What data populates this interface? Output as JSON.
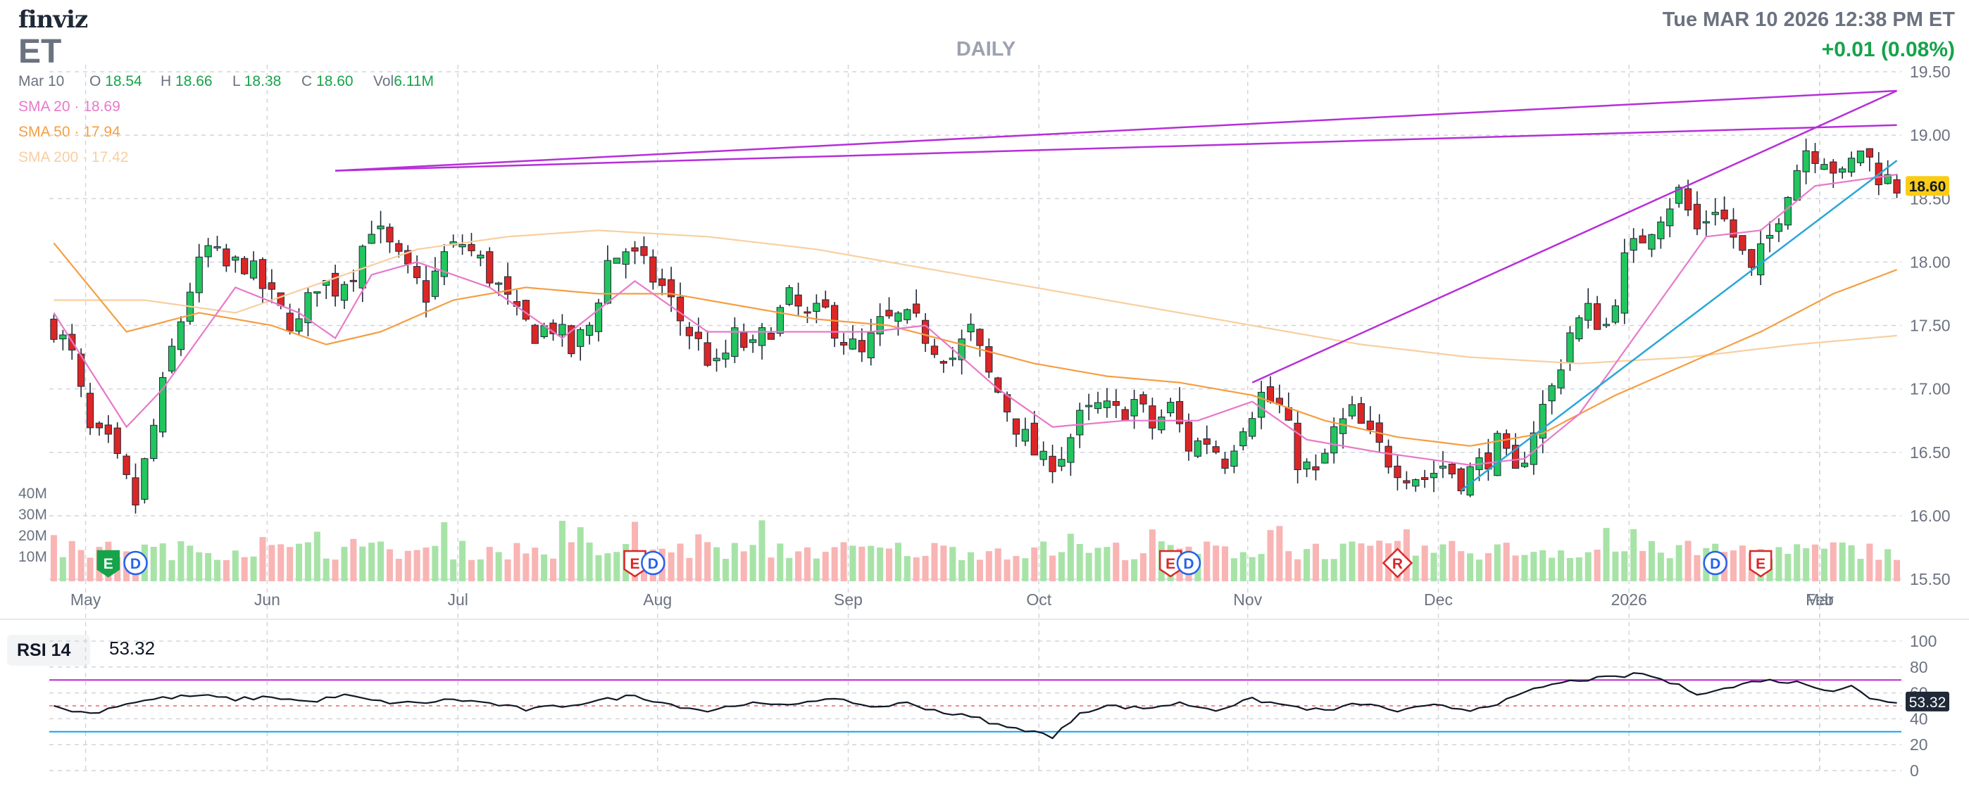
{
  "header": {
    "logo": "finviz",
    "ticker": "ET",
    "period": "DAILY",
    "datetime": "Tue MAR 10 2026 12:38 PM ET",
    "change": "+0.01 (0.08%)"
  },
  "ohlc": {
    "date": "Mar 10",
    "open_label": "O",
    "open": "18.54",
    "high_label": "H",
    "high": "18.66",
    "low_label": "L",
    "low": "18.38",
    "close_label": "C",
    "close": "18.60",
    "vol_label": "Vol",
    "vol": "6.11M"
  },
  "sma": [
    {
      "label": "SMA 20",
      "value": "18.69",
      "color": "#e879c9"
    },
    {
      "label": "SMA 50",
      "value": "17.94",
      "color": "#f59e42"
    },
    {
      "label": "SMA 200",
      "value": "17.42",
      "color": "#f8cfa0"
    }
  ],
  "rsi": {
    "label": "RSI 14",
    "value": "53.32"
  },
  "colors": {
    "up": "#22c55e",
    "down": "#dc2626",
    "up_vol": "#a7e3a7",
    "down_vol": "#f9b4b4",
    "trend": "#b62fd8",
    "channel": "#2aa6d6",
    "grid": "#d1d5db"
  },
  "chart_data": [
    {
      "type": "candlestick",
      "title": "ET DAILY",
      "x_ticks": [
        "May",
        "Jun",
        "Jul",
        "Aug",
        "Sep",
        "Oct",
        "Nov",
        "Dec",
        "2026",
        "Feb",
        "Mar"
      ],
      "y_ticks": [
        "19.50",
        "19.00",
        "18.50",
        "18.00",
        "17.50",
        "17.00",
        "16.50",
        "16.00",
        "15.50"
      ],
      "ylim": [
        15.5,
        19.5
      ],
      "last_price": "18.60",
      "close_path": [
        [
          0,
          17.5
        ],
        [
          2,
          17.25
        ],
        [
          4,
          16.65
        ],
        [
          6,
          16.55
        ],
        [
          9,
          16.1
        ],
        [
          11,
          16.7
        ],
        [
          13,
          17.3
        ],
        [
          15,
          17.8
        ],
        [
          17,
          18.1
        ],
        [
          19,
          17.95
        ],
        [
          21,
          18.0
        ],
        [
          23,
          17.8
        ],
        [
          25,
          17.6
        ],
        [
          27,
          17.5
        ],
        [
          29,
          17.85
        ],
        [
          31,
          17.8
        ],
        [
          33,
          17.95
        ],
        [
          35,
          18.3
        ],
        [
          37,
          18.1
        ],
        [
          39,
          17.9
        ],
        [
          41,
          17.75
        ],
        [
          43,
          18.05
        ],
        [
          45,
          18.15
        ],
        [
          47,
          18.0
        ],
        [
          49,
          17.8
        ],
        [
          51,
          17.55
        ],
        [
          53,
          17.45
        ],
        [
          55,
          17.5
        ],
        [
          57,
          17.3
        ],
        [
          59,
          17.5
        ],
        [
          61,
          18.0
        ],
        [
          63,
          18.1
        ],
        [
          65,
          17.95
        ],
        [
          67,
          17.8
        ],
        [
          69,
          17.55
        ],
        [
          71,
          17.35
        ],
        [
          73,
          17.15
        ],
        [
          75,
          17.4
        ],
        [
          77,
          17.3
        ],
        [
          79,
          17.5
        ],
        [
          81,
          17.7
        ],
        [
          83,
          17.55
        ],
        [
          85,
          17.6
        ],
        [
          87,
          17.4
        ],
        [
          89,
          17.25
        ],
        [
          91,
          17.5
        ],
        [
          93,
          17.55
        ],
        [
          95,
          17.5
        ],
        [
          97,
          17.35
        ],
        [
          99,
          17.25
        ],
        [
          101,
          17.45
        ],
        [
          103,
          17.1
        ],
        [
          105,
          16.85
        ],
        [
          107,
          16.6
        ],
        [
          109,
          16.4
        ],
        [
          111,
          16.5
        ],
        [
          113,
          16.75
        ],
        [
          115,
          16.85
        ],
        [
          117,
          16.8
        ],
        [
          119,
          16.9
        ],
        [
          121,
          16.7
        ],
        [
          123,
          16.85
        ],
        [
          125,
          16.55
        ],
        [
          127,
          16.6
        ],
        [
          129,
          16.45
        ],
        [
          131,
          16.75
        ],
        [
          133,
          16.95
        ],
        [
          135,
          16.85
        ],
        [
          137,
          16.45
        ],
        [
          139,
          16.3
        ],
        [
          141,
          16.65
        ],
        [
          143,
          16.8
        ],
        [
          145,
          16.6
        ],
        [
          147,
          16.45
        ],
        [
          149,
          16.35
        ],
        [
          151,
          16.3
        ],
        [
          153,
          16.4
        ],
        [
          155,
          16.3
        ],
        [
          157,
          16.4
        ],
        [
          159,
          16.55
        ],
        [
          161,
          16.3
        ],
        [
          163,
          16.7
        ],
        [
          165,
          17.0
        ],
        [
          167,
          17.45
        ],
        [
          169,
          17.6
        ],
        [
          171,
          17.5
        ],
        [
          173,
          18.0
        ],
        [
          175,
          18.2
        ],
        [
          177,
          18.4
        ],
        [
          179,
          18.55
        ],
        [
          181,
          18.25
        ],
        [
          183,
          18.45
        ],
        [
          185,
          18.2
        ],
        [
          187,
          17.9
        ],
        [
          189,
          18.2
        ],
        [
          191,
          18.6
        ],
        [
          193,
          18.9
        ],
        [
          195,
          18.85
        ],
        [
          197,
          18.65
        ],
        [
          199,
          18.9
        ],
        [
          201,
          18.7
        ],
        [
          203,
          18.6
        ]
      ],
      "sma20_path": [
        [
          0,
          17.6
        ],
        [
          8,
          16.7
        ],
        [
          12,
          17.0
        ],
        [
          20,
          17.8
        ],
        [
          27,
          17.6
        ],
        [
          31,
          17.4
        ],
        [
          35,
          17.9
        ],
        [
          40,
          18.0
        ],
        [
          48,
          17.8
        ],
        [
          56,
          17.4
        ],
        [
          64,
          17.85
        ],
        [
          72,
          17.45
        ],
        [
          80,
          17.45
        ],
        [
          90,
          17.45
        ],
        [
          96,
          17.5
        ],
        [
          104,
          17.0
        ],
        [
          110,
          16.7
        ],
        [
          118,
          16.75
        ],
        [
          126,
          16.75
        ],
        [
          132,
          16.9
        ],
        [
          138,
          16.6
        ],
        [
          146,
          16.5
        ],
        [
          156,
          16.4
        ],
        [
          162,
          16.45
        ],
        [
          168,
          16.8
        ],
        [
          176,
          17.6
        ],
        [
          182,
          18.2
        ],
        [
          188,
          18.25
        ],
        [
          194,
          18.6
        ],
        [
          203,
          18.69
        ]
      ],
      "sma50_path": [
        [
          0,
          18.15
        ],
        [
          8,
          17.45
        ],
        [
          16,
          17.6
        ],
        [
          24,
          17.5
        ],
        [
          30,
          17.35
        ],
        [
          36,
          17.45
        ],
        [
          44,
          17.7
        ],
        [
          52,
          17.8
        ],
        [
          60,
          17.75
        ],
        [
          68,
          17.75
        ],
        [
          76,
          17.65
        ],
        [
          84,
          17.55
        ],
        [
          92,
          17.5
        ],
        [
          100,
          17.35
        ],
        [
          108,
          17.2
        ],
        [
          116,
          17.1
        ],
        [
          124,
          17.05
        ],
        [
          132,
          16.95
        ],
        [
          140,
          16.75
        ],
        [
          148,
          16.62
        ],
        [
          156,
          16.55
        ],
        [
          164,
          16.65
        ],
        [
          172,
          16.95
        ],
        [
          180,
          17.2
        ],
        [
          188,
          17.45
        ],
        [
          196,
          17.75
        ],
        [
          203,
          17.94
        ]
      ],
      "sma200_path": [
        [
          0,
          17.7
        ],
        [
          10,
          17.7
        ],
        [
          20,
          17.6
        ],
        [
          30,
          17.85
        ],
        [
          40,
          18.1
        ],
        [
          50,
          18.2
        ],
        [
          60,
          18.25
        ],
        [
          72,
          18.2
        ],
        [
          84,
          18.1
        ],
        [
          96,
          17.95
        ],
        [
          108,
          17.8
        ],
        [
          120,
          17.65
        ],
        [
          132,
          17.5
        ],
        [
          144,
          17.35
        ],
        [
          156,
          17.25
        ],
        [
          168,
          17.2
        ],
        [
          180,
          17.25
        ],
        [
          192,
          17.35
        ],
        [
          203,
          17.42
        ]
      ],
      "trendlines": [
        {
          "from": [
            31,
            18.72
          ],
          "to": [
            203,
            19.35
          ],
          "color": "trend"
        },
        {
          "from": [
            31,
            18.72
          ],
          "to": [
            203,
            19.08
          ],
          "color": "trend"
        },
        {
          "from": [
            132,
            17.05
          ],
          "to": [
            203,
            19.35
          ],
          "color": "trend"
        },
        {
          "from": [
            155,
            16.2
          ],
          "to": [
            203,
            18.8
          ],
          "color": "channel"
        }
      ],
      "volume_ticks": [
        "40M",
        "30M",
        "20M",
        "10M"
      ],
      "events": [
        {
          "label": "E",
          "x": 6,
          "kind": "earnings-up"
        },
        {
          "label": "D",
          "x": 9,
          "kind": "dividend"
        },
        {
          "label": "E",
          "x": 64,
          "kind": "earnings-down"
        },
        {
          "label": "D",
          "x": 66,
          "kind": "dividend"
        },
        {
          "label": "E",
          "x": 123,
          "kind": "earnings-down"
        },
        {
          "label": "D",
          "x": 125,
          "kind": "dividend"
        },
        {
          "label": "R",
          "x": 148,
          "kind": "rating"
        },
        {
          "label": "D",
          "x": 183,
          "kind": "dividend"
        },
        {
          "label": "E",
          "x": 188,
          "kind": "earnings-down"
        }
      ]
    },
    {
      "type": "line",
      "title": "RSI 14",
      "y_ticks": [
        "100",
        "80",
        "60",
        "40",
        "20",
        "0"
      ],
      "ylim": [
        0,
        100
      ],
      "overbought": 70,
      "oversold": 30,
      "last_value": "53.32",
      "rsi_path": [
        [
          0,
          49
        ],
        [
          4,
          44
        ],
        [
          8,
          52
        ],
        [
          12,
          56
        ],
        [
          16,
          58
        ],
        [
          20,
          55
        ],
        [
          24,
          57
        ],
        [
          28,
          53
        ],
        [
          32,
          58
        ],
        [
          36,
          53
        ],
        [
          40,
          52
        ],
        [
          44,
          55
        ],
        [
          48,
          52
        ],
        [
          52,
          47
        ],
        [
          56,
          50
        ],
        [
          60,
          54
        ],
        [
          64,
          58
        ],
        [
          68,
          51
        ],
        [
          72,
          46
        ],
        [
          76,
          52
        ],
        [
          80,
          50
        ],
        [
          84,
          55
        ],
        [
          88,
          53
        ],
        [
          90,
          49
        ],
        [
          94,
          52
        ],
        [
          98,
          45
        ],
        [
          102,
          40
        ],
        [
          105,
          33
        ],
        [
          108,
          31
        ],
        [
          110,
          25
        ],
        [
          113,
          45
        ],
        [
          116,
          50
        ],
        [
          120,
          48
        ],
        [
          124,
          52
        ],
        [
          128,
          47
        ],
        [
          132,
          55
        ],
        [
          136,
          50
        ],
        [
          140,
          46
        ],
        [
          144,
          52
        ],
        [
          148,
          46
        ],
        [
          152,
          50
        ],
        [
          156,
          47
        ],
        [
          160,
          54
        ],
        [
          164,
          65
        ],
        [
          168,
          70
        ],
        [
          172,
          72
        ],
        [
          175,
          75
        ],
        [
          178,
          68
        ],
        [
          181,
          60
        ],
        [
          184,
          63
        ],
        [
          188,
          70
        ],
        [
          192,
          68
        ],
        [
          196,
          62
        ],
        [
          198,
          66
        ],
        [
          200,
          55
        ],
        [
          203,
          53
        ]
      ]
    }
  ]
}
